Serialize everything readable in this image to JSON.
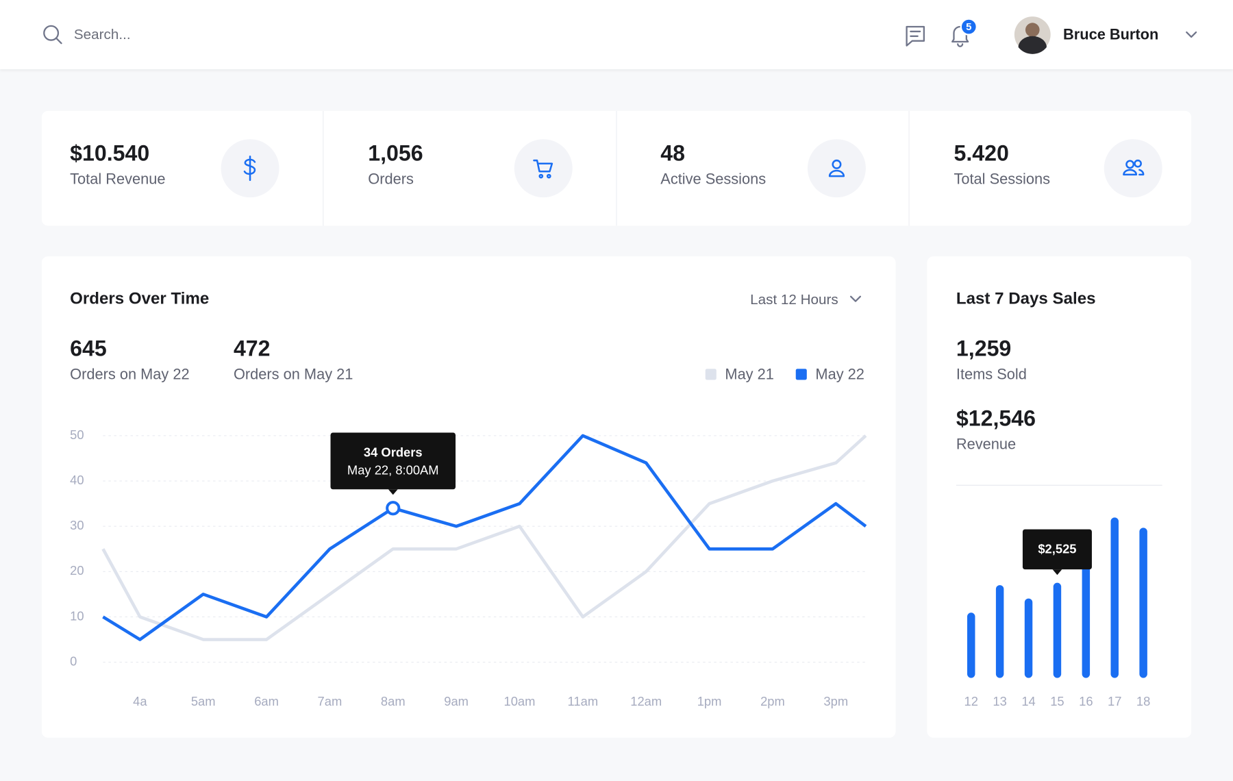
{
  "header": {
    "search_placeholder": "Search...",
    "notification_count": 5,
    "user_name": "Bruce Burton"
  },
  "stats": [
    {
      "value": "$10.540",
      "label": "Total Revenue"
    },
    {
      "value": "1,056",
      "label": "Orders"
    },
    {
      "value": "48",
      "label": "Active Sessions"
    },
    {
      "value": "5.420",
      "label": "Total Sessions"
    }
  ],
  "orders_panel": {
    "range": "Last 12 Hours",
    "summary": [
      {
        "value": "645",
        "label": "Orders on May 22"
      },
      {
        "value": "472",
        "label": "Orders on May 21"
      }
    ]
  },
  "sales_panel": {
    "summary": [
      {
        "value": "1,259",
        "label": "Items Sold"
      },
      {
        "value": "$12,546",
        "label": "Revenue"
      }
    ]
  },
  "chart_data": [
    {
      "type": "line",
      "title": "Orders Over Time",
      "categories": [
        null,
        "4a",
        "5am",
        "6am",
        "7am",
        "8am",
        "9am",
        "10am",
        "11am",
        "12am",
        "1pm",
        "2pm",
        "3pm",
        null
      ],
      "series": [
        {
          "name": "May 21",
          "color": "#dde2ec",
          "values": [
            25,
            10,
            5,
            5,
            15,
            25,
            25,
            30,
            10,
            20,
            35,
            40,
            44,
            50
          ]
        },
        {
          "name": "May 22",
          "color": "#1a6ef2",
          "values": [
            10,
            5,
            15,
            10,
            25,
            34,
            30,
            35,
            50,
            44,
            25,
            25,
            35,
            30
          ],
          "value_labels": [
            null,
            null,
            null,
            null,
            null,
            "34 Orders",
            null,
            null,
            null,
            null,
            null,
            null,
            null,
            null
          ]
        }
      ],
      "annotation": "May 22, 8:00AM",
      "ylim": [
        0,
        50
      ],
      "yticks": [
        0,
        10,
        20,
        30,
        40,
        50
      ],
      "grid": true,
      "legend": "top-right"
    },
    {
      "type": "bar",
      "title": "Last 7 Days Sales",
      "categories": [
        "12",
        "13",
        "14",
        "15",
        "16",
        "17",
        "18"
      ],
      "values": [
        1732,
        2463,
        2108,
        2525,
        3590,
        4258,
        3986
      ],
      "value_labels": [
        null,
        null,
        null,
        "$2,525",
        null,
        null,
        null
      ],
      "color": "#1a6ef2"
    }
  ]
}
